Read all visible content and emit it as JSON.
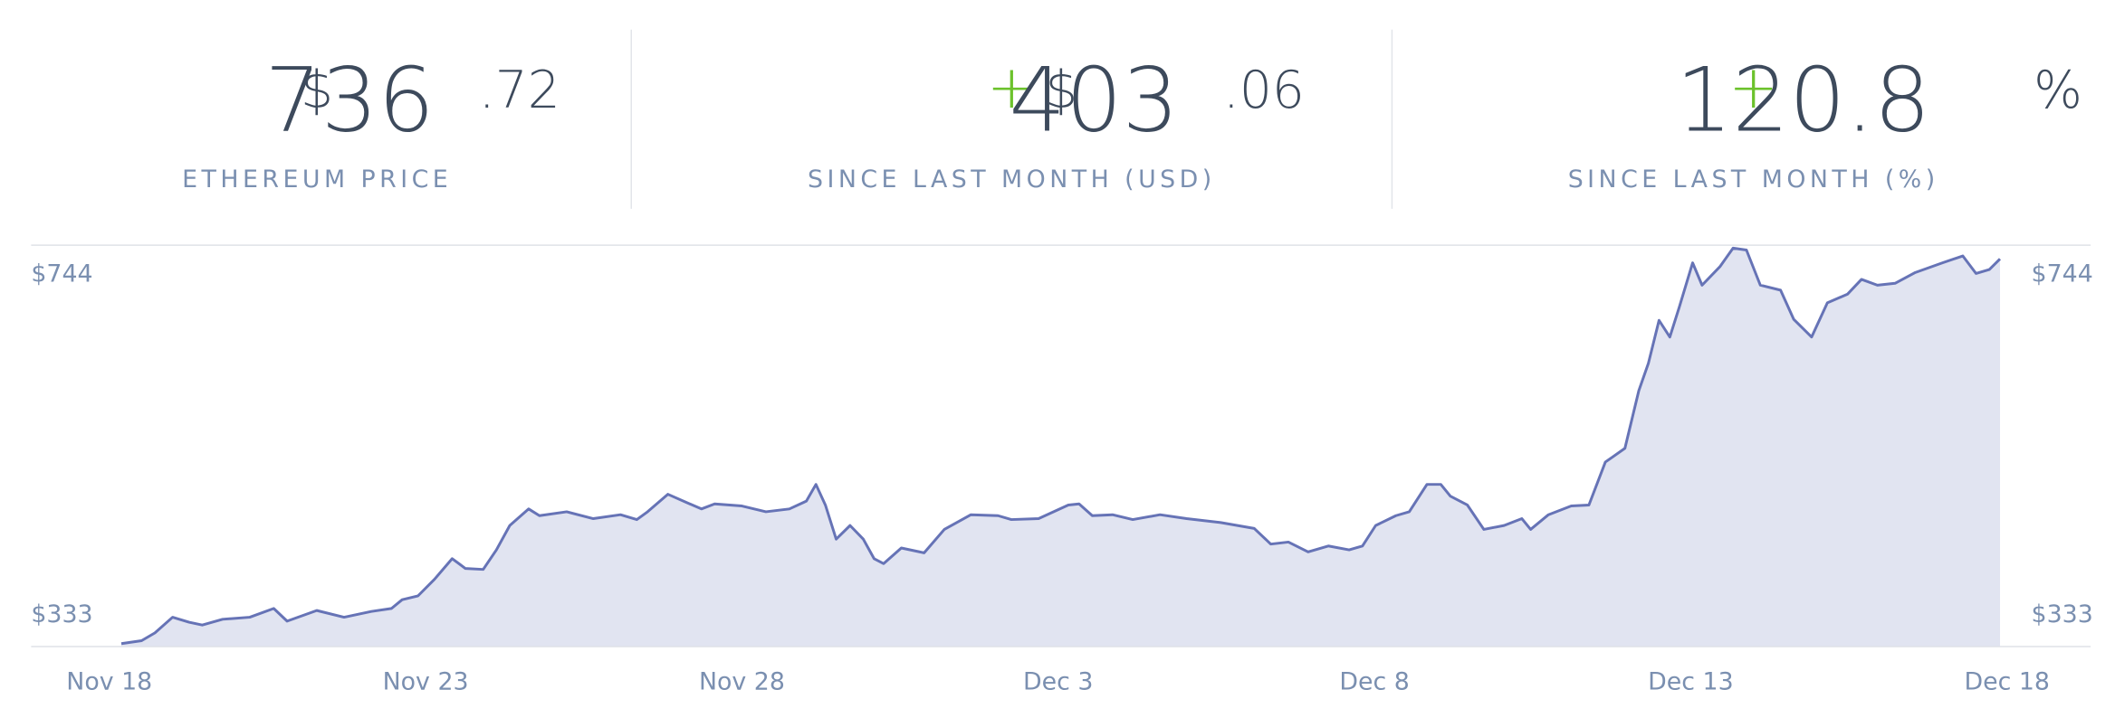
{
  "stats": [
    {
      "sign": null,
      "currency": "$",
      "integer": "736",
      "fraction": ".72",
      "unit": null,
      "label": "ETHEREUM PRICE"
    },
    {
      "sign": "+",
      "currency": "$",
      "integer": "403",
      "fraction": ".06",
      "unit": null,
      "label": "SINCE LAST MONTH (USD)"
    },
    {
      "sign": "+",
      "currency": null,
      "integer": "120.8",
      "fraction": null,
      "unit": "%",
      "label": "SINCE LAST MONTH (%)"
    }
  ],
  "chart_data": {
    "type": "area",
    "color": "#6673b6",
    "fill": "#e1e4f1",
    "xlim": [
      0,
      30
    ],
    "xticks": [
      {
        "value": 0,
        "label": "Nov 18"
      },
      {
        "value": 5,
        "label": "Nov 23"
      },
      {
        "value": 10,
        "label": "Nov 28"
      },
      {
        "value": 15,
        "label": "Dec 3"
      },
      {
        "value": 20,
        "label": "Dec 8"
      },
      {
        "value": 25,
        "label": "Dec 13"
      },
      {
        "value": 30,
        "label": "Dec 18"
      }
    ],
    "ylim": [
      333,
      744
    ],
    "yticks": [
      {
        "value": 333,
        "label": "$333"
      },
      {
        "value": 744,
        "label": "$744"
      }
    ],
    "x": [
      0.19,
      0.51,
      0.72,
      1.0,
      1.26,
      1.47,
      1.79,
      2.22,
      2.6,
      2.81,
      3.28,
      3.71,
      4.14,
      4.46,
      4.63,
      4.88,
      5.14,
      5.42,
      5.63,
      5.91,
      6.12,
      6.33,
      6.63,
      6.8,
      7.23,
      7.65,
      8.08,
      8.34,
      8.51,
      8.83,
      9.11,
      9.36,
      9.57,
      10.0,
      10.38,
      10.75,
      11.02,
      11.17,
      11.32,
      11.49,
      11.71,
      11.92,
      12.09,
      12.24,
      12.52,
      12.88,
      13.2,
      13.62,
      14.05,
      14.26,
      14.69,
      15.16,
      15.33,
      15.54,
      15.86,
      16.18,
      16.61,
      17.03,
      17.57,
      18.1,
      18.36,
      18.64,
      18.95,
      19.27,
      19.6,
      19.81,
      20.02,
      20.34,
      20.55,
      20.83,
      21.05,
      21.2,
      21.47,
      21.73,
      22.05,
      22.33,
      22.47,
      22.75,
      23.11,
      23.39,
      23.65,
      23.96,
      24.18,
      24.33,
      24.5,
      24.67,
      24.82,
      25.03,
      25.18,
      25.46,
      25.67,
      25.88,
      26.1,
      26.42,
      26.63,
      26.91,
      27.16,
      27.48,
      27.7,
      27.95,
      28.23,
      28.55,
      28.98,
      29.3,
      29.51,
      29.72,
      29.89
    ],
    "values": [
      336,
      339,
      347,
      363,
      358,
      355,
      361,
      363,
      372,
      359,
      370,
      363,
      369,
      372,
      381,
      385,
      402,
      423,
      413,
      412,
      432,
      457,
      474,
      467,
      471,
      464,
      468,
      463,
      471,
      489,
      481,
      474,
      479,
      477,
      471,
      474,
      482,
      499,
      478,
      443,
      457,
      443,
      423,
      418,
      434,
      429,
      453,
      468,
      467,
      463,
      464,
      478,
      479,
      467,
      468,
      463,
      468,
      464,
      460,
      454,
      438,
      440,
      430,
      436,
      432,
      436,
      457,
      467,
      471,
      499,
      499,
      487,
      478,
      453,
      457,
      464,
      453,
      468,
      477,
      478,
      522,
      536,
      595,
      623,
      667,
      650,
      681,
      726,
      703,
      722,
      741,
      739,
      703,
      698,
      668,
      650,
      685,
      694,
      709,
      703,
      705,
      716,
      726,
      733,
      715,
      719,
      730
    ]
  }
}
